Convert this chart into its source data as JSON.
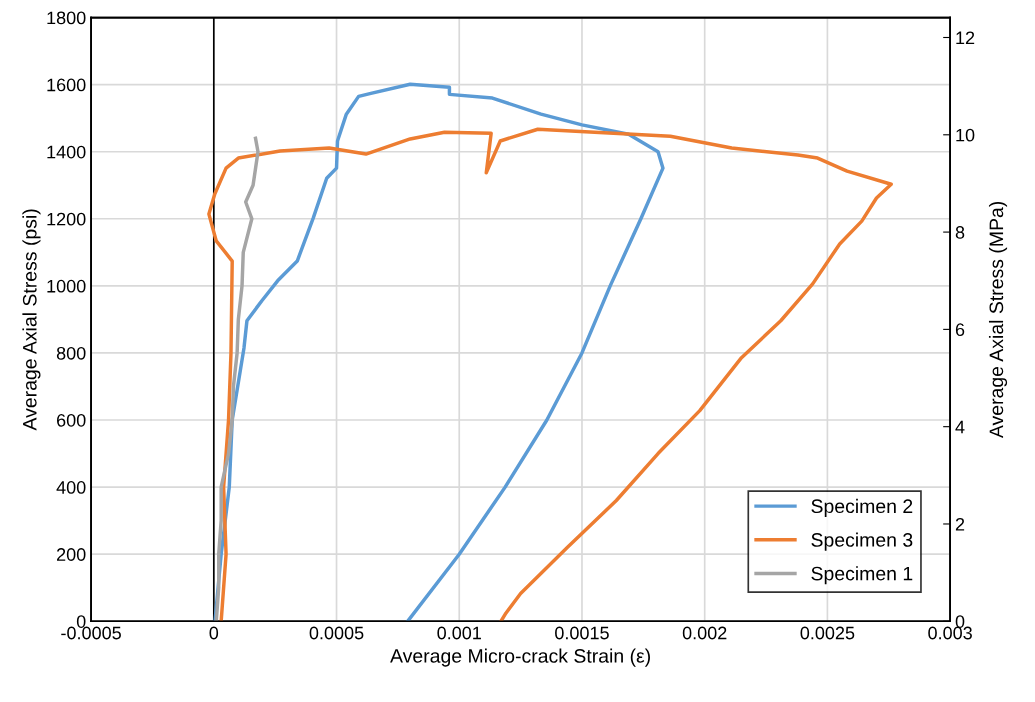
{
  "chart_data": {
    "type": "line",
    "xlabel": "Average Micro-crack Strain (ε)",
    "ylabel": "Average Axial Stress (psi)",
    "y2label": "Average Axial Stress (MPa)",
    "xlim": [
      -0.0005,
      0.003
    ],
    "xticks": [
      {
        "value": -0.0005,
        "label": "-0.0005"
      },
      {
        "value": 0,
        "label": "0"
      },
      {
        "value": 0.0005,
        "label": "0.0005"
      },
      {
        "value": 0.001,
        "label": "0.001"
      },
      {
        "value": 0.0015,
        "label": "0.0015"
      },
      {
        "value": 0.002,
        "label": "0.002"
      },
      {
        "value": 0.0025,
        "label": "0.0025"
      },
      {
        "value": 0.003,
        "label": "0.003"
      }
    ],
    "ylim": [
      0,
      1800
    ],
    "yticks": [
      0,
      200,
      400,
      600,
      800,
      1000,
      1200,
      1400,
      1600,
      1800
    ],
    "y2lim": [
      0,
      12.41
    ],
    "y2ticks": [
      0,
      2,
      4,
      6,
      8,
      10,
      12
    ],
    "grid": true,
    "legend": "bottom right",
    "line_style": "solid",
    "marker": "none",
    "ref_lines": [
      {
        "axis": "x",
        "value": 0,
        "color": "#000000"
      }
    ],
    "series": [
      {
        "name": "Specimen 2",
        "color": "#5b9bd5",
        "x": [
          5e-06,
          3e-05,
          6.3e-05,
          7.5e-05,
          0.000123,
          0.000135,
          0.000195,
          0.00026,
          0.00034,
          0.000405,
          0.00046,
          0.0005,
          0.000504,
          0.00054,
          0.00059,
          0.00064,
          0.0008,
          0.00096,
          0.00096,
          0.001135,
          0.001333,
          0.0015,
          0.00169,
          0.00181,
          0.00183,
          0.00174,
          0.001615,
          0.0015,
          0.001357,
          0.001187,
          0.001,
          0.00079
        ],
        "values": [
          0,
          200,
          400,
          600,
          815,
          896,
          955,
          1015,
          1074,
          1202,
          1321,
          1351,
          1432,
          1512,
          1565,
          1574,
          1601,
          1592,
          1571,
          1560,
          1512,
          1480,
          1452,
          1400,
          1351,
          1200,
          1000,
          800,
          600,
          400,
          200,
          0
        ]
      },
      {
        "name": "Specimen 3",
        "color": "#ed7d31",
        "x": [
          3e-05,
          5e-05,
          4e-05,
          6e-05,
          7e-05,
          7.5e-05,
          1e-05,
          -2e-05,
          4e-06,
          5e-05,
          0.0001,
          0.00027,
          0.00047,
          0.00062,
          0.0008,
          0.00094,
          0.00113,
          0.00111,
          0.001167,
          0.00132,
          0.00186,
          0.00211,
          0.00238,
          0.00246,
          0.00258,
          0.00276,
          0.0027,
          0.00264,
          0.00255,
          0.00244,
          0.00231,
          0.00215,
          0.00198,
          0.00181,
          0.00164,
          0.00144,
          0.00125,
          0.00119,
          0.00117
        ],
        "values": [
          0,
          200,
          400,
          600,
          800,
          1074,
          1134,
          1214,
          1274,
          1351,
          1381,
          1402,
          1411,
          1393,
          1438,
          1458,
          1455,
          1337,
          1432,
          1467,
          1446,
          1411,
          1390,
          1381,
          1342,
          1303,
          1262,
          1193,
          1125,
          1006,
          896,
          786,
          628,
          500,
          360,
          220,
          83,
          24,
          0
        ]
      },
      {
        "name": "Specimen 1",
        "color": "#a5a5a5",
        "x": [
          1e-05,
          2e-05,
          2e-05,
          3e-05,
          3e-05,
          6e-05,
          7.5e-05,
          8e-05,
          9.5e-05,
          0.0001,
          0.000115,
          0.00012,
          0.000155,
          0.00013,
          0.00016,
          0.00018,
          0.00017
        ],
        "values": [
          0,
          100,
          200,
          300,
          400,
          500,
          600,
          700,
          800,
          900,
          1000,
          1100,
          1200,
          1250,
          1300,
          1400,
          1440
        ]
      }
    ]
  }
}
